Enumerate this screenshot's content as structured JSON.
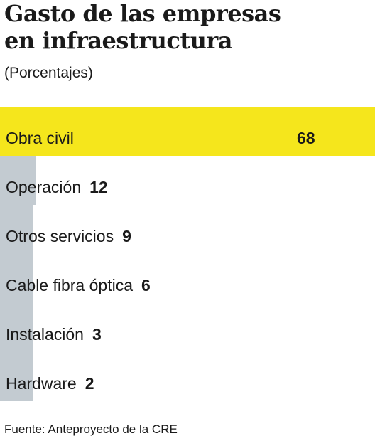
{
  "header": {
    "title_line1": "Gasto de las empresas",
    "title_line2": "en infraestructura",
    "subtitle": "(Porcentajes)"
  },
  "chart_data": {
    "type": "bar",
    "orientation": "horizontal",
    "categories": [
      "Obra civil",
      "Operación",
      "Otros servicios",
      "Cable fibra óptica",
      "Instalación",
      "Hardware"
    ],
    "values": [
      68,
      12,
      9,
      6,
      3,
      2
    ],
    "value_labels": [
      "68",
      "12",
      "9",
      "6",
      "3",
      "2"
    ],
    "highlight_index": 0,
    "colors": {
      "highlight": "#f5e61c",
      "bar": "#c3cbd1",
      "text": "#1a1a1a"
    }
  },
  "footer": {
    "source": "Fuente: Anteproyecto de la CRE"
  }
}
